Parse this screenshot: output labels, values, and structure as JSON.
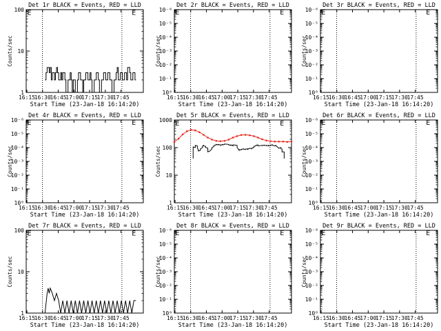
{
  "chart_data": [
    {
      "type": "line",
      "title": "Det 1r BLACK = Events, RED = LLD",
      "xlabel": "Start Time (23-Jan-18 16:14:20)",
      "ylabel": "Counts/sec",
      "yscale": "log",
      "x_ticks": [
        "16:15",
        "16:30",
        "16:45",
        "17:00",
        "17:15",
        "17:30",
        "17:45"
      ],
      "y_ticks": [
        "1",
        "10",
        "100"
      ],
      "ylim_log10": [
        0,
        2
      ],
      "dotted_vlines_min": [
        15.5,
        91.5
      ],
      "markers": [
        {
          "label": "E",
          "x_min": 1,
          "y_log10": 1.94
        },
        {
          "label": "E",
          "x_min": 101,
          "y_log10": 1.94
        }
      ],
      "series": [
        {
          "color": "#000000",
          "x_min": [
            18,
            19,
            19,
            20,
            20,
            22,
            22,
            23,
            23,
            24,
            24,
            25,
            25,
            27,
            27,
            28,
            28,
            29,
            29,
            30,
            30,
            31,
            31,
            33,
            33,
            34,
            34,
            35,
            35,
            37,
            37,
            38,
            38,
            40,
            40,
            42,
            42,
            43,
            43,
            44,
            44,
            45,
            45,
            47,
            47,
            49,
            49,
            50,
            50,
            52,
            52,
            54,
            54,
            55,
            55,
            57,
            57,
            59,
            59,
            61,
            61,
            62,
            62,
            63,
            63,
            65,
            65,
            67,
            67,
            69,
            69,
            70,
            70,
            72,
            72,
            74,
            74,
            76,
            76,
            78,
            78,
            80,
            80,
            82,
            82,
            84,
            84,
            86,
            86,
            87,
            87,
            88,
            88,
            90,
            90,
            92,
            92,
            94,
            94,
            96,
            96,
            97,
            97,
            99,
            99,
            100,
            100,
            102,
            102,
            104,
            104,
            105
          ],
          "y": [
            2,
            2,
            3,
            3,
            4,
            4,
            3,
            3,
            4,
            4,
            2,
            2,
            3,
            3,
            2,
            2,
            3,
            3,
            4,
            4,
            3,
            3,
            2,
            2,
            3,
            3,
            2,
            2,
            3,
            3,
            2,
            2,
            1,
            1,
            2,
            2,
            3,
            3,
            2,
            2,
            1,
            1,
            2,
            2,
            1,
            1,
            2,
            2,
            3,
            3,
            2,
            2,
            1,
            1,
            2,
            2,
            3,
            3,
            2,
            2,
            3,
            3,
            2,
            2,
            1,
            1,
            2,
            2,
            3,
            3,
            2,
            2,
            1,
            1,
            2,
            2,
            3,
            3,
            2,
            2,
            3,
            3,
            2,
            2,
            1,
            1,
            2,
            2,
            3,
            3,
            4,
            4,
            2,
            2,
            3,
            3,
            2,
            2,
            3,
            3,
            2,
            2,
            4,
            4,
            3,
            3,
            2,
            2,
            3,
            3,
            2,
            2
          ]
        }
      ]
    },
    {
      "type": "line",
      "title": "Det 2r BLACK = Events, RED = LLD",
      "xlabel": "Start Time (23-Jan-18 16:14:20)",
      "ylabel": "Counts/sec",
      "yscale": "log",
      "x_ticks": [
        "16:15",
        "16:30",
        "16:45",
        "17:00",
        "17:15",
        "17:30",
        "17:45"
      ],
      "y_ticks": [
        "10⁰",
        "10⁻¹",
        "10⁻²",
        "10⁻³",
        "10⁻⁴",
        "10⁻⁵",
        "10⁻⁶"
      ],
      "ylim_log10": [
        0,
        -6
      ],
      "dotted_vlines_min": [
        15.5,
        91.5
      ],
      "markers": [
        {
          "label": "E",
          "x_min": 1,
          "y_log10": -5.85
        },
        {
          "label": "E",
          "x_min": 101,
          "y_log10": -5.85
        }
      ],
      "series": []
    },
    {
      "type": "line",
      "title": "Det 3r BLACK = Events, RED = LLD",
      "xlabel": "Start Time (23-Jan-18 16:14:20)",
      "ylabel": "Counts/sec",
      "yscale": "log",
      "x_ticks": [
        "16:15",
        "16:30",
        "16:45",
        "17:00",
        "17:15",
        "17:30",
        "17:45"
      ],
      "y_ticks": [
        "10⁰",
        "10⁻¹",
        "10⁻²",
        "10⁻³",
        "10⁻⁴",
        "10⁻⁵",
        "10⁻⁶"
      ],
      "ylim_log10": [
        0,
        -6
      ],
      "dotted_vlines_min": [
        15.5,
        91.5
      ],
      "markers": [
        {
          "label": "E",
          "x_min": 1,
          "y_log10": -5.85
        },
        {
          "label": "E",
          "x_min": 101,
          "y_log10": -5.85
        }
      ],
      "series": []
    },
    {
      "type": "line",
      "title": "Det 4r BLACK = Events, RED = LLD",
      "xlabel": "Start Time (23-Jan-18 16:14:20)",
      "ylabel": "Counts/sec",
      "yscale": "log",
      "x_ticks": [
        "16:15",
        "16:30",
        "16:45",
        "17:00",
        "17:15",
        "17:30",
        "17:45"
      ],
      "y_ticks": [
        "10⁰",
        "10⁻¹",
        "10⁻²",
        "10⁻³",
        "10⁻⁴",
        "10⁻⁵",
        "10⁻⁶"
      ],
      "ylim_log10": [
        0,
        -6
      ],
      "dotted_vlines_min": [
        15.5,
        91.5
      ],
      "markers": [
        {
          "label": "E",
          "x_min": 1,
          "y_log10": -5.85
        },
        {
          "label": "E",
          "x_min": 101,
          "y_log10": -5.85
        }
      ],
      "series": []
    },
    {
      "type": "line",
      "title": "Det 5r BLACK = Events, RED = LLD",
      "xlabel": "Start Time (23-Jan-18 16:14:20)",
      "ylabel": "Counts/sec",
      "yscale": "log",
      "x_ticks": [
        "16:15",
        "16:30",
        "16:45",
        "17:00",
        "17:15",
        "17:30",
        "17:45"
      ],
      "y_ticks": [
        "1",
        "10",
        "100",
        "1000"
      ],
      "ylim_log10": [
        0,
        3
      ],
      "dotted_vlines_min": [
        15.5,
        91.5
      ],
      "markers": [
        {
          "label": "E",
          "x_min": 1,
          "y_log10": 2.9
        },
        {
          "label": "E",
          "x_min": 101,
          "y_log10": 2.9
        }
      ],
      "series": [
        {
          "color": "#e8281e",
          "x_min": [
            0,
            4,
            8,
            12,
            16,
            20,
            24,
            28,
            32,
            36,
            40,
            44,
            48,
            52,
            56,
            60,
            64,
            68,
            72,
            76,
            80,
            84,
            88,
            92,
            96,
            100,
            104,
            108,
            112
          ],
          "y": [
            160,
            210,
            300,
            390,
            440,
            420,
            360,
            290,
            230,
            195,
            175,
            170,
            175,
            195,
            230,
            260,
            285,
            290,
            280,
            260,
            230,
            200,
            180,
            170,
            165,
            165,
            165,
            160,
            165
          ]
        },
        {
          "color": "#000000",
          "x_min": [
            18,
            18,
            20,
            20,
            22,
            22,
            23,
            23,
            25,
            25,
            27,
            27,
            28,
            28,
            30,
            30,
            32,
            32,
            34,
            34,
            36,
            36,
            38,
            38,
            40,
            40,
            42,
            42,
            44,
            44,
            46,
            46,
            48,
            48,
            52,
            52,
            54,
            54,
            56,
            56,
            60,
            60,
            62,
            62,
            64,
            64,
            66,
            66,
            68,
            68,
            70,
            70,
            72,
            72,
            74,
            74,
            76,
            76,
            78,
            78,
            80,
            80,
            84,
            84,
            86,
            86,
            88,
            88,
            90,
            90,
            92,
            92,
            94,
            94,
            96,
            97,
            97,
            98,
            99,
            100,
            102,
            102,
            103,
            103,
            105,
            105
          ],
          "y": [
            40,
            105,
            100,
            120,
            115,
            100,
            80,
            75,
            80,
            90,
            100,
            115,
            120,
            115,
            110,
            100,
            95,
            70,
            75,
            75,
            90,
            100,
            110,
            120,
            125,
            130,
            125,
            130,
            125,
            120,
            130,
            125,
            130,
            135,
            130,
            125,
            120,
            125,
            115,
            125,
            120,
            100,
            80,
            85,
            82,
            85,
            90,
            88,
            85,
            88,
            90,
            85,
            95,
            95,
            90,
            95,
            100,
            110,
            115,
            120,
            125,
            115,
            120,
            118,
            122,
            120,
            118,
            120,
            115,
            120,
            118,
            122,
            125,
            120,
            115,
            120,
            115,
            110,
            100,
            95,
            100,
            90,
            88,
            70,
            70,
            40
          ]
        }
      ]
    },
    {
      "type": "line",
      "title": "Det 6r BLACK = Events, RED = LLD",
      "xlabel": "Start Time (23-Jan-18 16:14:20)",
      "ylabel": "Counts/sec",
      "yscale": "log",
      "x_ticks": [
        "16:15",
        "16:30",
        "16:45",
        "17:00",
        "17:15",
        "17:30",
        "17:45"
      ],
      "y_ticks": [
        "10⁰",
        "10⁻¹",
        "10⁻²",
        "10⁻³",
        "10⁻⁴",
        "10⁻⁵",
        "10⁻⁶"
      ],
      "ylim_log10": [
        0,
        -6
      ],
      "dotted_vlines_min": [
        15.5,
        91.5
      ],
      "markers": [
        {
          "label": "E",
          "x_min": 1,
          "y_log10": -5.85
        },
        {
          "label": "E",
          "x_min": 101,
          "y_log10": -5.85
        }
      ],
      "series": []
    },
    {
      "type": "line",
      "title": "Det 7r BLACK = Events, RED = LLD",
      "xlabel": "Start Time (23-Jan-18 16:14:20)",
      "ylabel": "Counts/sec",
      "yscale": "log",
      "x_ticks": [
        "16:15",
        "16:30",
        "16:45",
        "17:00",
        "17:15",
        "17:30",
        "17:45"
      ],
      "y_ticks": [
        "1",
        "10",
        "100"
      ],
      "ylim_log10": [
        0,
        2
      ],
      "dotted_vlines_min": [
        15.5,
        91.5
      ],
      "markers": [
        {
          "label": "E",
          "x_min": 1,
          "y_log10": 1.94
        },
        {
          "label": "E",
          "x_min": 101,
          "y_log10": 1.94
        }
      ],
      "series": [
        {
          "color": "#000000",
          "x_min": [
            18,
            20,
            20,
            21,
            21,
            22,
            22,
            23,
            23,
            25,
            25,
            27,
            27,
            29,
            29,
            31,
            31,
            33,
            33,
            35,
            35,
            37,
            37,
            39,
            39,
            41,
            41,
            43,
            43,
            45,
            45,
            47,
            47,
            49,
            49,
            51,
            51,
            53,
            53,
            55,
            55,
            57,
            57,
            59,
            59,
            61,
            61,
            63,
            63,
            65,
            65,
            67,
            67,
            69,
            69,
            71,
            71,
            73,
            73,
            75,
            75,
            77,
            77,
            79,
            79,
            81,
            81,
            83,
            83,
            85,
            85,
            87,
            87,
            89,
            89,
            91,
            91,
            93,
            93,
            95,
            95,
            97,
            97,
            99,
            99,
            101,
            101,
            103,
            103,
            105
          ],
          "y": [
            1,
            3,
            3,
            4,
            4,
            3,
            3,
            4,
            4,
            3,
            3,
            2,
            2,
            3,
            3,
            2,
            2,
            1,
            1,
            2,
            2,
            1,
            1,
            2,
            2,
            1,
            1,
            2,
            2,
            1,
            1,
            2,
            2,
            1,
            1,
            2,
            2,
            1,
            1,
            2,
            2,
            1,
            1,
            2,
            2,
            1,
            1,
            2,
            2,
            1,
            1,
            2,
            2,
            1,
            1,
            2,
            2,
            1,
            1,
            2,
            2,
            1,
            1,
            2,
            2,
            1,
            1,
            2,
            2,
            1,
            1,
            2,
            2,
            1,
            1,
            2,
            2,
            1,
            1,
            2,
            2,
            1,
            1,
            2,
            2,
            1,
            1,
            2,
            2,
            2
          ]
        }
      ]
    },
    {
      "type": "line",
      "title": "Det 8r BLACK = Events, RED = LLD",
      "xlabel": "Start Time (23-Jan-18 16:14:20)",
      "ylabel": "Counts/sec",
      "yscale": "log",
      "x_ticks": [
        "16:15",
        "16:30",
        "16:45",
        "17:00",
        "17:15",
        "17:30",
        "17:45"
      ],
      "y_ticks": [
        "10⁰",
        "10⁻¹",
        "10⁻²",
        "10⁻³",
        "10⁻⁴",
        "10⁻⁵",
        "10⁻⁶"
      ],
      "ylim_log10": [
        0,
        -6
      ],
      "dotted_vlines_min": [
        15.5,
        91.5
      ],
      "markers": [
        {
          "label": "E",
          "x_min": 1,
          "y_log10": -5.85
        },
        {
          "label": "E",
          "x_min": 101,
          "y_log10": -5.85
        }
      ],
      "series": []
    },
    {
      "type": "line",
      "title": "Det 9r BLACK = Events, RED = LLD",
      "xlabel": "Start Time (23-Jan-18 16:14:20)",
      "ylabel": "Counts/sec",
      "yscale": "log",
      "x_ticks": [
        "16:15",
        "16:30",
        "16:45",
        "17:00",
        "17:15",
        "17:30",
        "17:45"
      ],
      "y_ticks": [
        "10⁰",
        "10⁻¹",
        "10⁻²",
        "10⁻³",
        "10⁻⁴",
        "10⁻⁵",
        "10⁻⁶"
      ],
      "ylim_log10": [
        0,
        -6
      ],
      "dotted_vlines_min": [
        15.5,
        91.5
      ],
      "markers": [
        {
          "label": "E",
          "x_min": 1,
          "y_log10": -5.85
        },
        {
          "label": "E",
          "x_min": 101,
          "y_log10": -5.85
        }
      ],
      "series": []
    }
  ]
}
